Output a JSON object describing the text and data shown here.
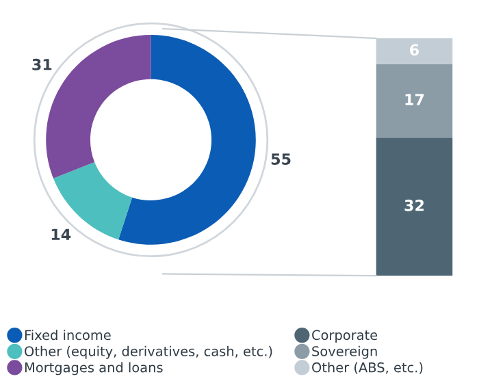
{
  "chart_data": [
    {
      "type": "donut",
      "categories": [
        "Fixed income",
        "Other (equity, derivatives, cash, etc.)",
        "Mortgages and loans"
      ],
      "values": [
        55,
        14,
        31
      ],
      "colors": [
        "#0a5cb5",
        "#4dbfbf",
        "#7b4b9e"
      ],
      "data_labels": true,
      "legend": "bottom"
    },
    {
      "type": "bar",
      "stacked": true,
      "categories": [
        null
      ],
      "series": [
        {
          "name": "Corporate",
          "color": "#4e6673",
          "values": [
            32
          ]
        },
        {
          "name": "Sovereign",
          "color": "#8b9ca7",
          "values": [
            17
          ]
        },
        {
          "name": "Other (ABS, etc.)",
          "color": "#c3cdd6",
          "values": [
            6
          ]
        }
      ],
      "data_labels": true,
      "legend": "bottom"
    }
  ]
}
